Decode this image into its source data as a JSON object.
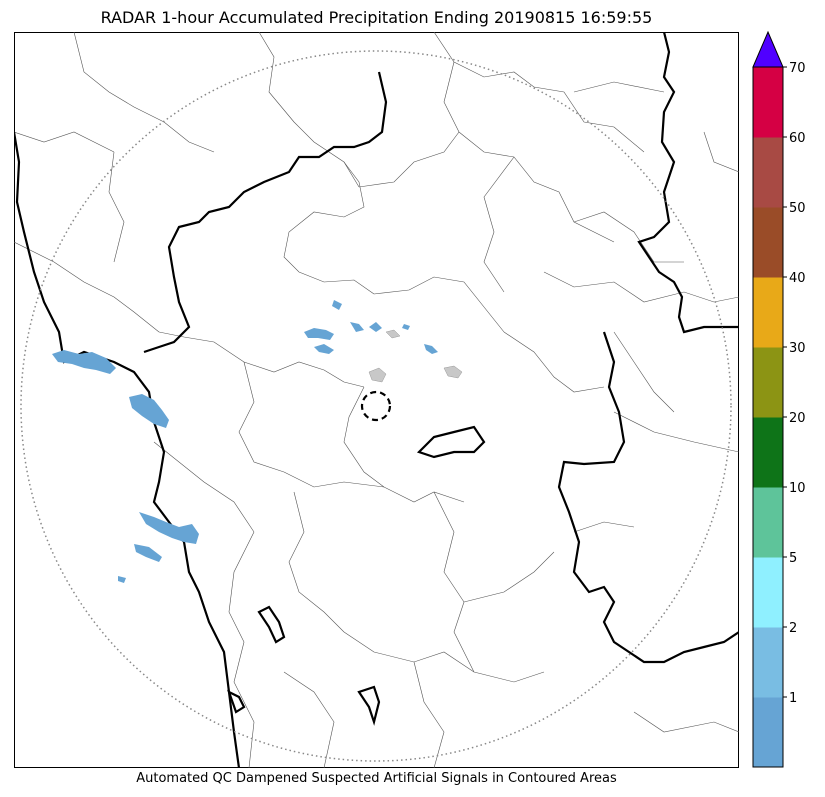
{
  "title": "RADAR 1-hour Accumulated Precipitation Ending 20190815 16:59:55",
  "footer": "Automated QC Dampened Suspected Artificial Signals in Contoured Areas",
  "colorbar": {
    "extend": "max",
    "extend_color": "#5000ff",
    "bins": [
      {
        "label": "",
        "color": "#66a4d4"
      },
      {
        "label": "1",
        "color": "#79bde3"
      },
      {
        "label": "2",
        "color": "#8ff0ff"
      },
      {
        "label": "5",
        "color": "#5ec49a"
      },
      {
        "label": "10",
        "color": "#0e7418"
      },
      {
        "label": "20",
        "color": "#8c9414"
      },
      {
        "label": "30",
        "color": "#e8a918"
      },
      {
        "label": "40",
        "color": "#9a4c28"
      },
      {
        "label": "50",
        "color": "#a84a44"
      },
      {
        "label": "60",
        "color": "#d50044"
      }
    ],
    "top_label": "70"
  },
  "map": {
    "radar_range_ring": "dotted-grey",
    "radar_site_marker": "dashed-circle",
    "precip_color": "#66a4d4",
    "qc_color": "#c8c8c8"
  }
}
